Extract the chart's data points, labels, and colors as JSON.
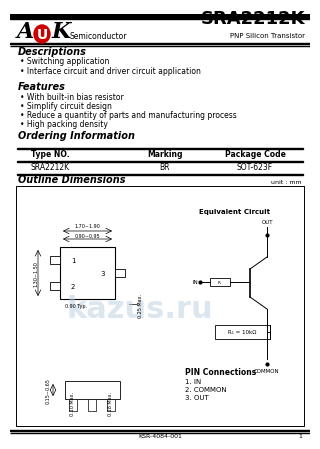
{
  "title": "SRA2212K",
  "subtitle": "PNP Silicon Transistor",
  "company": "Semiconductor",
  "logo_A": "A",
  "logo_U": "U",
  "logo_K": "K",
  "section_descriptions": "Descriptions",
  "desc_bullets": [
    "Switching application",
    "Interface circuit and driver circuit application"
  ],
  "section_features": "Features",
  "feat_bullets": [
    "With built-in bias resistor",
    "Simplify circuit design",
    "Reduce a quantity of parts and manufacturing process",
    "High packing density"
  ],
  "section_ordering": "Ordering Information",
  "order_headers": [
    "Type NO.",
    "Marking",
    "Package Code"
  ],
  "order_row": [
    "SRA2212K",
    "BR",
    "SOT-623F"
  ],
  "section_outline": "Outline Dimensions",
  "unit_label": "unit : mm",
  "pin_connections_title": "PIN Connections",
  "pin_connections": [
    "1. IN",
    "2. COMMON",
    "3. OUT"
  ],
  "equiv_circuit_title": "Equivalent Circuit",
  "footer": "KSR-4084-001",
  "page_num": "1",
  "bg_color": "#ffffff",
  "watermark_color": "#b8cfe0"
}
